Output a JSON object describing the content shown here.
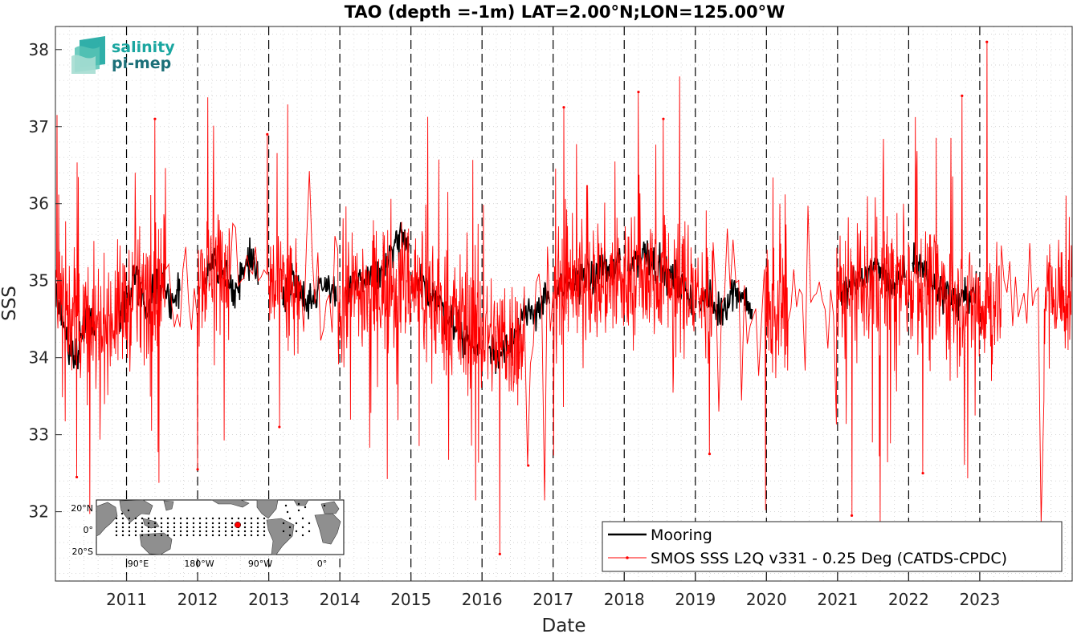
{
  "logo": {
    "line1": "salinity",
    "line2": "pi-mep",
    "color1": "#1aa6a0",
    "color2": "#1b6f78"
  },
  "legend": {
    "entries": [
      {
        "label": "Mooring",
        "color": "#000000"
      },
      {
        "label": "SMOS SSS L2Q v331 - 0.25 Deg (CATDS-CPDC)",
        "color": "#ff0000"
      }
    ]
  },
  "inset_map": {
    "lat_labels": [
      "20°N",
      "0°",
      "20°S"
    ],
    "lon_labels": [
      "90°E",
      "180°W",
      "90°W",
      "0°"
    ],
    "mooring_color": "#ff0000"
  },
  "chart_data": {
    "type": "line",
    "title": "TAO (depth =-1m) LAT=2.00°N;LON=125.00°W",
    "xlabel": "Date",
    "ylabel": "SSS",
    "xlim": [
      2010.0,
      2024.3
    ],
    "ylim": [
      31.1,
      38.3
    ],
    "x_ticks": [
      2011,
      2012,
      2013,
      2014,
      2015,
      2016,
      2017,
      2018,
      2019,
      2020,
      2021,
      2022,
      2023
    ],
    "x_tick_labels": [
      "2011",
      "2012",
      "2013",
      "2014",
      "2015",
      "2016",
      "2017",
      "2018",
      "2019",
      "2020",
      "2021",
      "2022",
      "2023"
    ],
    "y_ticks": [
      32,
      33,
      34,
      35,
      36,
      37,
      38
    ],
    "y_tick_labels": [
      "32",
      "33",
      "34",
      "35",
      "36",
      "37",
      "38"
    ],
    "year_marker_lines": [
      2011,
      2012,
      2013,
      2014,
      2015,
      2016,
      2017,
      2018,
      2019,
      2020,
      2021,
      2022,
      2023
    ],
    "grid": true,
    "legend_position": "bottom-right",
    "series": [
      {
        "name": "Mooring",
        "color": "#000000",
        "mean_approx": 34.8,
        "segments": [
          {
            "x_start": 2010.0,
            "x_end": 2010.55,
            "values": [
              34.8,
              34.5,
              34.2,
              34.0,
              34.3,
              34.6,
              34.4
            ]
          },
          {
            "x_start": 2010.9,
            "x_end": 2011.75,
            "values": [
              34.5,
              34.8,
              35.1,
              34.6,
              34.9,
              35.0,
              34.7,
              34.9
            ]
          },
          {
            "x_start": 2012.1,
            "x_end": 2012.85,
            "values": [
              35.0,
              35.2,
              35.1,
              34.9,
              35.0,
              35.3,
              35.1
            ]
          },
          {
            "x_start": 2013.2,
            "x_end": 2013.95,
            "values": [
              34.8,
              35.0,
              34.9,
              34.7,
              34.9,
              35.0,
              34.8
            ]
          },
          {
            "x_start": 2014.1,
            "x_end": 2014.98,
            "values": [
              34.8,
              34.9,
              35.0,
              35.1,
              35.0,
              35.2,
              35.4,
              35.6,
              35.3
            ]
          },
          {
            "x_start": 2015.1,
            "x_end": 2015.95,
            "values": [
              35.0,
              34.9,
              34.8,
              34.6,
              34.5,
              34.3,
              34.2,
              34.1
            ]
          },
          {
            "x_start": 2016.1,
            "x_end": 2016.95,
            "values": [
              34.1,
              34.0,
              34.2,
              34.3,
              34.5,
              34.6,
              34.7,
              34.8
            ]
          },
          {
            "x_start": 2017.05,
            "x_end": 2017.95,
            "values": [
              34.8,
              34.9,
              35.0,
              35.1,
              35.0,
              35.2,
              35.1,
              35.3
            ]
          },
          {
            "x_start": 2018.05,
            "x_end": 2018.95,
            "values": [
              35.2,
              35.3,
              35.4,
              35.2,
              35.1,
              35.0,
              34.9,
              34.8
            ]
          },
          {
            "x_start": 2019.05,
            "x_end": 2019.8,
            "values": [
              34.7,
              34.8,
              34.6,
              34.7,
              34.9,
              34.8,
              34.6
            ]
          },
          {
            "x_start": 2021.05,
            "x_end": 2021.95,
            "values": [
              34.8,
              34.9,
              35.0,
              35.1,
              35.2,
              35.0,
              34.9,
              35.1
            ]
          },
          {
            "x_start": 2022.05,
            "x_end": 2022.95,
            "values": [
              35.3,
              35.2,
              35.0,
              34.9,
              34.8,
              34.7,
              34.8,
              34.9
            ]
          }
        ]
      },
      {
        "name": "SMOS SSS L2Q v331 - 0.25 Deg (CATDS-CPDC)",
        "color": "#ff0000",
        "mean_approx": 34.8,
        "daily_spread_approx": 0.75,
        "slow_component": {
          "x": [
            2010.0,
            2010.5,
            2011.0,
            2011.5,
            2012.0,
            2012.5,
            2013.0,
            2013.5,
            2014.0,
            2014.5,
            2015.0,
            2015.5,
            2016.0,
            2016.5,
            2017.0,
            2017.5,
            2018.0,
            2018.5,
            2019.0,
            2019.5,
            2020.0,
            2020.5,
            2021.0,
            2021.5,
            2022.0,
            2022.5,
            2023.0,
            2023.5,
            2024.3
          ],
          "y": [
            34.9,
            34.3,
            34.7,
            35.0,
            35.1,
            35.2,
            34.9,
            34.7,
            34.8,
            34.9,
            35.0,
            34.6,
            34.3,
            34.2,
            34.7,
            35.0,
            35.0,
            35.1,
            34.8,
            34.7,
            34.6,
            34.7,
            34.8,
            34.9,
            35.0,
            34.8,
            34.7,
            34.8,
            34.8
          ]
        },
        "notable_extremes": [
          {
            "x": 2010.3,
            "y": 32.45
          },
          {
            "x": 2011.4,
            "y": 37.1
          },
          {
            "x": 2012.0,
            "y": 32.55
          },
          {
            "x": 2012.98,
            "y": 36.9
          },
          {
            "x": 2013.15,
            "y": 33.1
          },
          {
            "x": 2016.25,
            "y": 31.45
          },
          {
            "x": 2016.65,
            "y": 32.6
          },
          {
            "x": 2017.15,
            "y": 37.25
          },
          {
            "x": 2018.2,
            "y": 37.45
          },
          {
            "x": 2018.55,
            "y": 37.1
          },
          {
            "x": 2019.2,
            "y": 32.75
          },
          {
            "x": 2021.2,
            "y": 31.95
          },
          {
            "x": 2021.6,
            "y": 31.85
          },
          {
            "x": 2022.2,
            "y": 32.5
          },
          {
            "x": 2022.75,
            "y": 37.4
          },
          {
            "x": 2023.1,
            "y": 38.1
          },
          {
            "x": 2023.85,
            "y": 31.85
          }
        ]
      }
    ]
  }
}
